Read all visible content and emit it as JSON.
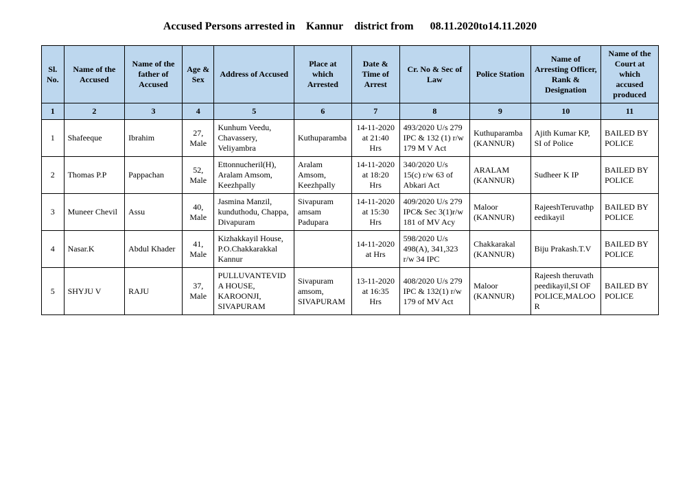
{
  "title": "Accused Persons arrested in Kannur district from  08.11.2020to14.11.2020",
  "columns": [
    "Sl. No.",
    "Name of the Accused",
    "Name of the father of Accused",
    "Age & Sex",
    "Address of Accused",
    "Place at which Arrested",
    "Date & Time of Arrest",
    "Cr. No & Sec of Law",
    "Police Station",
    "Name of Arresting Officer, Rank & Designation",
    "Name of the Court at which accused produced"
  ],
  "numrow": [
    "1",
    "2",
    "3",
    "4",
    "5",
    "6",
    "7",
    "8",
    "9",
    "10",
    "11"
  ],
  "rows": [
    {
      "sl": "1",
      "name": "Shafeeque",
      "father": "Ibrahim",
      "age": "27, Male",
      "addr": "Kunhum Veedu, Chavassery, Veliyambra",
      "place": "Kuthuparamba",
      "date": "14-11-2020 at 21:40 Hrs",
      "cr": "493/2020 U/s 279 IPC & 132 (1) r/w 179 M V Act",
      "ps": "Kuthuparamba (KANNUR)",
      "officer": "Ajith Kumar KP, SI of Police",
      "court": "BAILED BY POLICE"
    },
    {
      "sl": "2",
      "name": "Thomas P.P",
      "father": "Pappachan",
      "age": "52, Male",
      "addr": "Ettonnucheril(H), Aralam Amsom, Keezhpally",
      "place": "Aralam Amsom, Keezhpally",
      "date": "14-11-2020 at 18:20 Hrs",
      "cr": "340/2020 U/s 15(c) r/w 63 of Abkari Act",
      "ps": "ARALAM (KANNUR)",
      "officer": "Sudheer K IP",
      "court": "BAILED BY POLICE"
    },
    {
      "sl": "3",
      "name": "Muneer Chevil",
      "father": "Assu",
      "age": "40, Male",
      "addr": "Jasmina Manzil, kunduthodu, Chappa, Divapuram",
      "place": "Sivapuram amsam Padupara",
      "date": "14-11-2020 at 15:30 Hrs",
      "cr": "409/2020 U/s 279 IPC& Sec 3(1)r/w 181 of MV Acy",
      "ps": "Maloor (KANNUR)",
      "officer": "RajeeshTeruvathpeedikayil",
      "court": "BAILED BY POLICE"
    },
    {
      "sl": "4",
      "name": "Nasar.K",
      "father": "Abdul Khader",
      "age": "41, Male",
      "addr": "Kizhakkayil House, P.O.Chakkarakkal Kannur",
      "place": "",
      "date": "14-11-2020 at  Hrs",
      "cr": "598/2020 U/s 498(A), 341,323 r/w 34 IPC",
      "ps": "Chakkarakal (KANNUR)",
      "officer": "Biju Prakash.T.V",
      "court": "BAILED BY POLICE"
    },
    {
      "sl": "5",
      "name": "SHYJU V",
      "father": "RAJU",
      "age": "37, Male",
      "addr": "PULLUVANTEVIDA HOUSE, KAROONJI, SIVAPURAM",
      "place": "Sivapuram amsom, SIVAPURAM",
      "date": "13-11-2020 at 16:35 Hrs",
      "cr": "408/2020 U/s 279 IPC & 132(1) r/w 179 of MV Act",
      "ps": "Maloor (KANNUR)",
      "officer": "Rajeesh theruvath peedikayil,SI OF POLICE,MALOOR",
      "court": "BAILED BY POLICE"
    }
  ]
}
